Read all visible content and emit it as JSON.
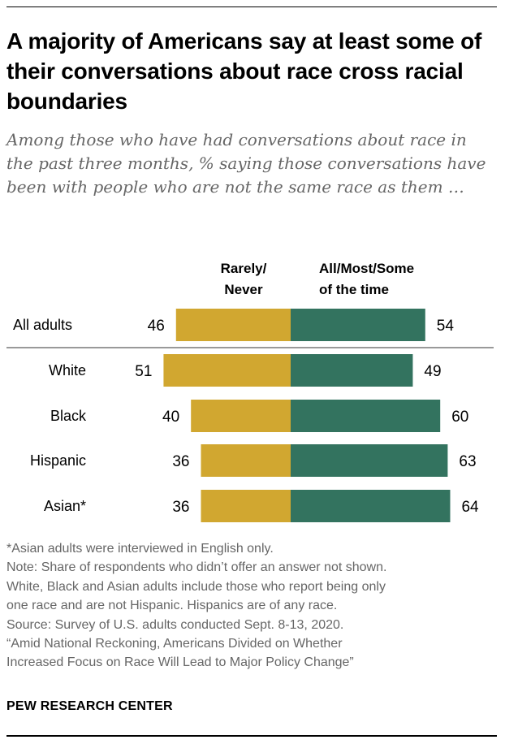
{
  "header": {
    "title": "A majority of Americans say at least some of their conversations about race cross racial boundaries",
    "subtitle": "Among those who have had conversations about race in the past three months, % saying those conversations have been with people who are not the same race as them …"
  },
  "chart_data": {
    "type": "bar",
    "orientation": "horizontal-diverging",
    "categories": [
      "All adults",
      "White",
      "Black",
      "Hispanic",
      "Asian*"
    ],
    "series": [
      {
        "name": "Rarely/ Never",
        "name_lines": [
          "Rarely/",
          "Never"
        ],
        "values": [
          46,
          51,
          40,
          36,
          36
        ],
        "color": "#D1A730"
      },
      {
        "name": "All/Most/Some of the time",
        "name_lines": [
          "All/Most/Some",
          "of the time"
        ],
        "values": [
          54,
          49,
          60,
          63,
          64
        ],
        "color": "#33735F"
      }
    ],
    "divider_after": "All adults",
    "divider_color": "#999999"
  },
  "footer": {
    "notes": [
      "*Asian adults were interviewed in English only.",
      "Note: Share of respondents who didn’t offer an answer not shown.",
      "White, Black and Asian adults include those who report being only",
      "one race and are not Hispanic. Hispanics are of any race.",
      "Source: Survey of U.S. adults conducted Sept. 8-13, 2020.",
      "“Amid National Reckoning, Americans Divided on Whether",
      "Increased Focus on Race Will Lead to Major Policy Change”"
    ],
    "brand": "PEW RESEARCH CENTER"
  }
}
